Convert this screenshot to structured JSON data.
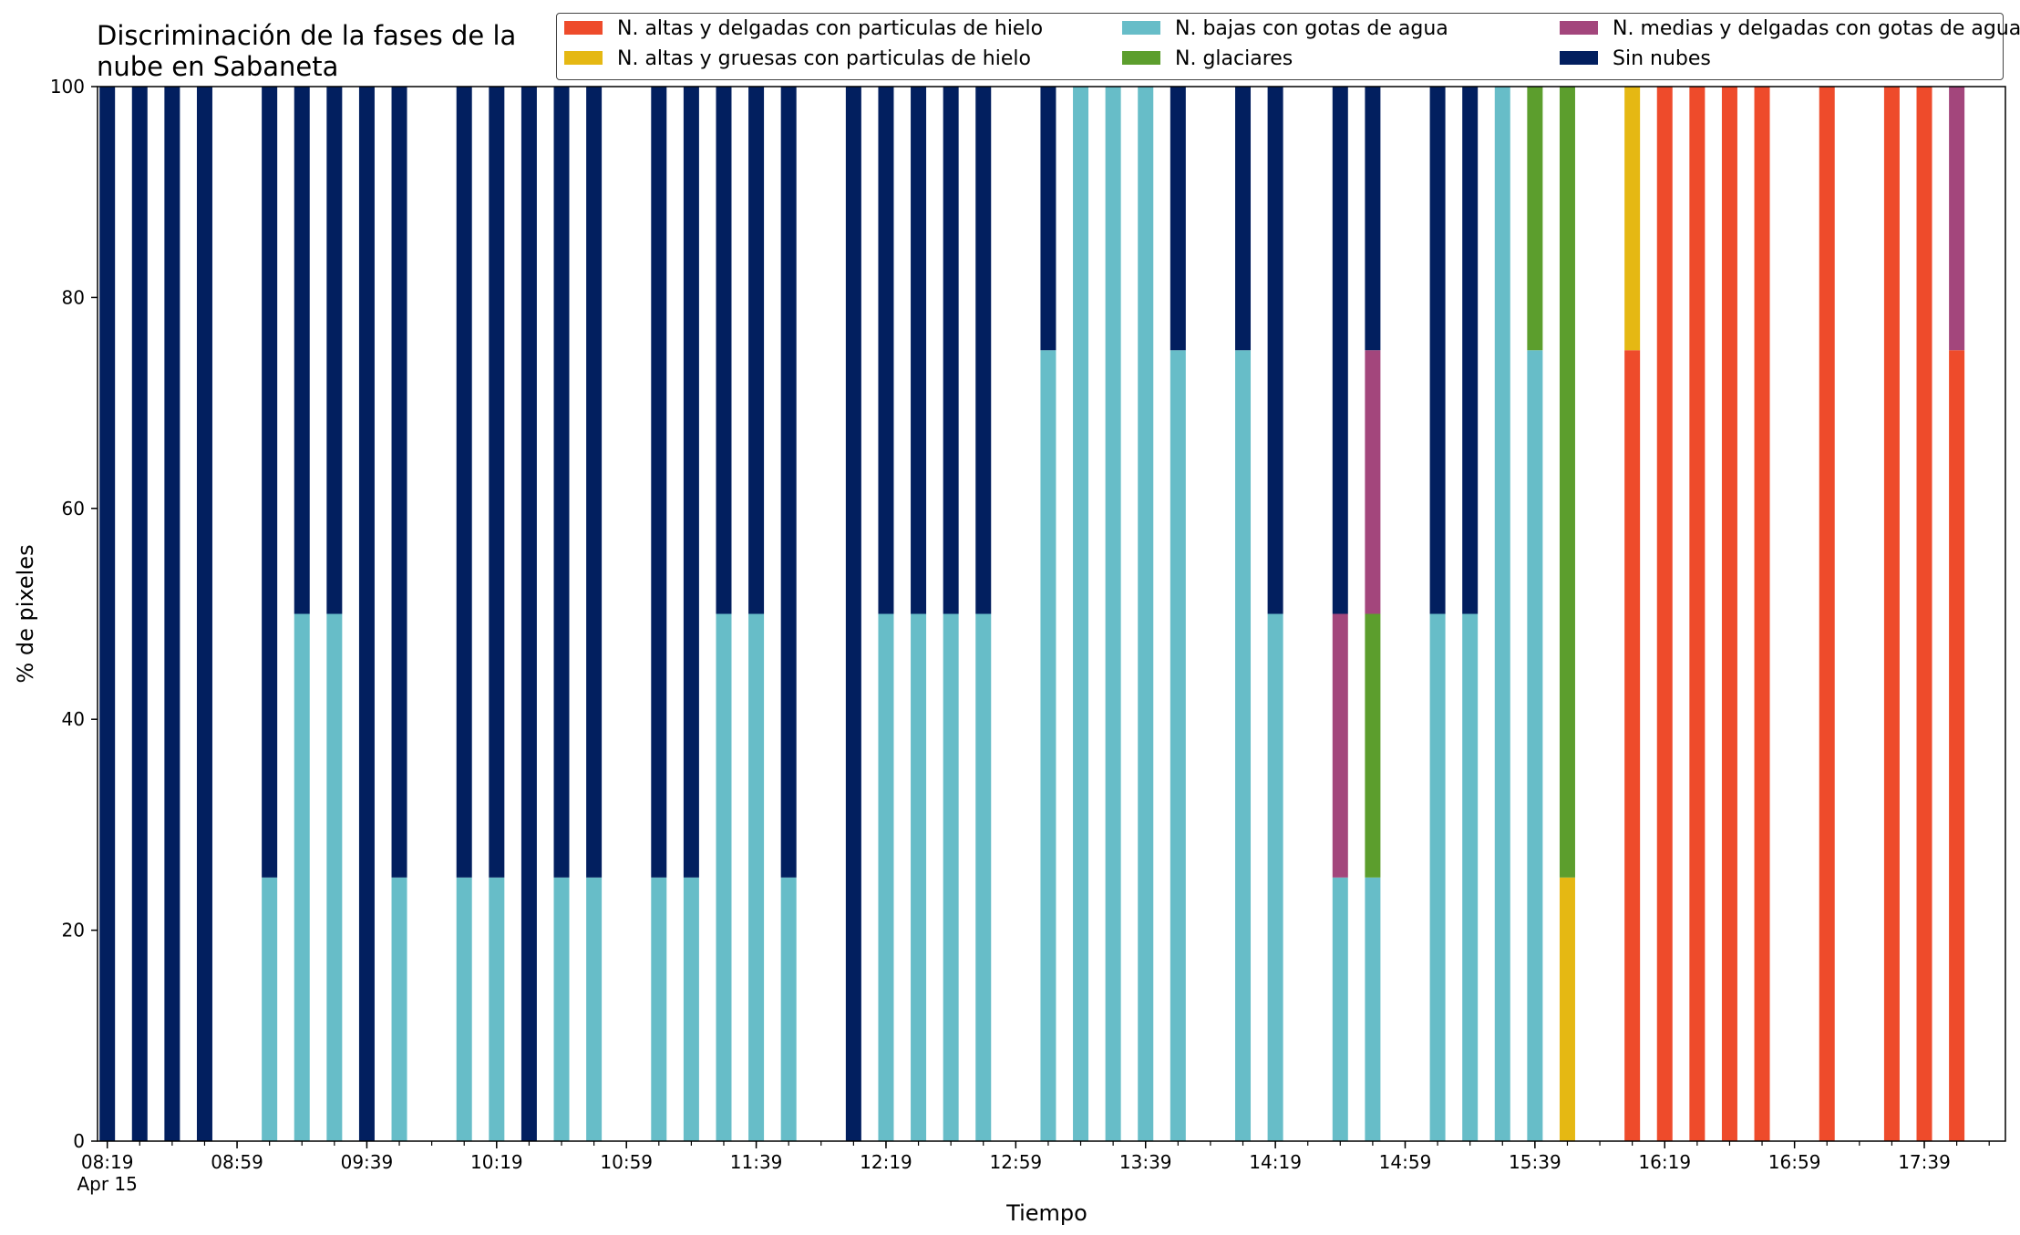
{
  "chart_data": {
    "type": "bar",
    "stacked": true,
    "title": "Discriminación de la fases de la nube en Sabaneta",
    "title_lines": [
      "Discriminación de la fases de la",
      "nube en Sabaneta"
    ],
    "xlabel": "Tiempo",
    "ylabel": "% de pixeles",
    "ylim": [
      0,
      100
    ],
    "yticks": [
      0,
      20,
      40,
      60,
      80,
      100
    ],
    "grid": false,
    "legend_position": "top-right",
    "x_range_minutes_from_0819": [
      -3,
      585
    ],
    "xtick_labels": [
      {
        "t": 0,
        "label": "08:19",
        "sub": "Apr 15"
      },
      {
        "t": 40,
        "label": "08:59"
      },
      {
        "t": 80,
        "label": "09:39"
      },
      {
        "t": 120,
        "label": "10:19"
      },
      {
        "t": 160,
        "label": "10:59"
      },
      {
        "t": 200,
        "label": "11:39"
      },
      {
        "t": 240,
        "label": "12:19"
      },
      {
        "t": 280,
        "label": "12:59"
      },
      {
        "t": 320,
        "label": "13:39"
      },
      {
        "t": 360,
        "label": "14:19"
      },
      {
        "t": 400,
        "label": "14:59"
      },
      {
        "t": 440,
        "label": "15:39"
      },
      {
        "t": 480,
        "label": "16:19"
      },
      {
        "t": 520,
        "label": "16:59"
      },
      {
        "t": 560,
        "label": "17:39"
      }
    ],
    "minor_tick_step_minutes": 10,
    "categories": [
      "08:19",
      "08:29",
      "08:39",
      "08:49",
      "09:09",
      "09:19",
      "09:29",
      "09:39",
      "09:49",
      "10:09",
      "10:19",
      "10:29",
      "10:39",
      "10:49",
      "11:09",
      "11:19",
      "11:29",
      "11:39",
      "11:49",
      "12:09",
      "12:19",
      "12:29",
      "12:39",
      "12:49",
      "13:09",
      "13:19",
      "13:29",
      "13:39",
      "13:49",
      "14:09",
      "14:19",
      "14:39",
      "14:49",
      "15:09",
      "15:19",
      "15:29",
      "15:39",
      "15:49",
      "16:09",
      "16:19",
      "16:29",
      "16:39",
      "16:49",
      "17:09",
      "17:29",
      "17:39",
      "17:49"
    ],
    "series": [
      {
        "name": "N. altas y delgadas con particulas de hielo",
        "color": "#ee4b2b",
        "values": [
          0,
          0,
          0,
          0,
          0,
          0,
          0,
          0,
          0,
          0,
          0,
          0,
          0,
          0,
          0,
          0,
          0,
          0,
          0,
          0,
          0,
          0,
          0,
          0,
          0,
          0,
          0,
          0,
          0,
          0,
          0,
          0,
          0,
          0,
          0,
          0,
          0,
          0,
          75,
          100,
          100,
          100,
          100,
          100,
          100,
          100,
          75
        ]
      },
      {
        "name": "N. altas y gruesas con particulas de hielo",
        "color": "#e5b813",
        "values": [
          0,
          0,
          0,
          0,
          0,
          0,
          0,
          0,
          0,
          0,
          0,
          0,
          0,
          0,
          0,
          0,
          0,
          0,
          0,
          0,
          0,
          0,
          0,
          0,
          0,
          0,
          0,
          0,
          0,
          0,
          0,
          0,
          0,
          0,
          0,
          0,
          0,
          25,
          25,
          0,
          0,
          0,
          0,
          0,
          0,
          0,
          0
        ]
      },
      {
        "name": "N. bajas con gotas de agua",
        "color": "#67bdc8",
        "values": [
          0,
          0,
          0,
          0,
          25,
          50,
          50,
          0,
          25,
          25,
          25,
          0,
          25,
          25,
          25,
          25,
          50,
          50,
          25,
          0,
          50,
          50,
          50,
          50,
          75,
          100,
          100,
          100,
          75,
          75,
          50,
          25,
          25,
          50,
          50,
          100,
          75,
          0,
          0,
          0,
          0,
          0,
          0,
          0,
          0,
          0,
          0
        ]
      },
      {
        "name": "N. glaciares",
        "color": "#5c9e2d",
        "values": [
          0,
          0,
          0,
          0,
          0,
          0,
          0,
          0,
          0,
          0,
          0,
          0,
          0,
          0,
          0,
          0,
          0,
          0,
          0,
          0,
          0,
          0,
          0,
          0,
          0,
          0,
          0,
          0,
          0,
          0,
          0,
          0,
          25,
          0,
          0,
          0,
          25,
          75,
          0,
          0,
          0,
          0,
          0,
          0,
          0,
          0,
          0
        ]
      },
      {
        "name": "N. medias y delgadas con gotas de agua",
        "color": "#a3467c",
        "values": [
          0,
          0,
          0,
          0,
          0,
          0,
          0,
          0,
          0,
          0,
          0,
          0,
          0,
          0,
          0,
          0,
          0,
          0,
          0,
          0,
          0,
          0,
          0,
          0,
          0,
          0,
          0,
          0,
          0,
          0,
          0,
          25,
          25,
          0,
          0,
          0,
          0,
          0,
          0,
          0,
          0,
          0,
          0,
          0,
          0,
          0,
          25
        ]
      },
      {
        "name": "Sin nubes",
        "color": "#021f5f",
        "values": [
          100,
          100,
          100,
          100,
          75,
          50,
          50,
          100,
          75,
          75,
          75,
          100,
          75,
          75,
          75,
          75,
          50,
          50,
          75,
          100,
          50,
          50,
          50,
          50,
          25,
          0,
          0,
          0,
          25,
          25,
          50,
          50,
          25,
          50,
          50,
          0,
          0,
          0,
          0,
          0,
          0,
          0,
          0,
          0,
          0,
          0,
          0
        ]
      }
    ]
  }
}
